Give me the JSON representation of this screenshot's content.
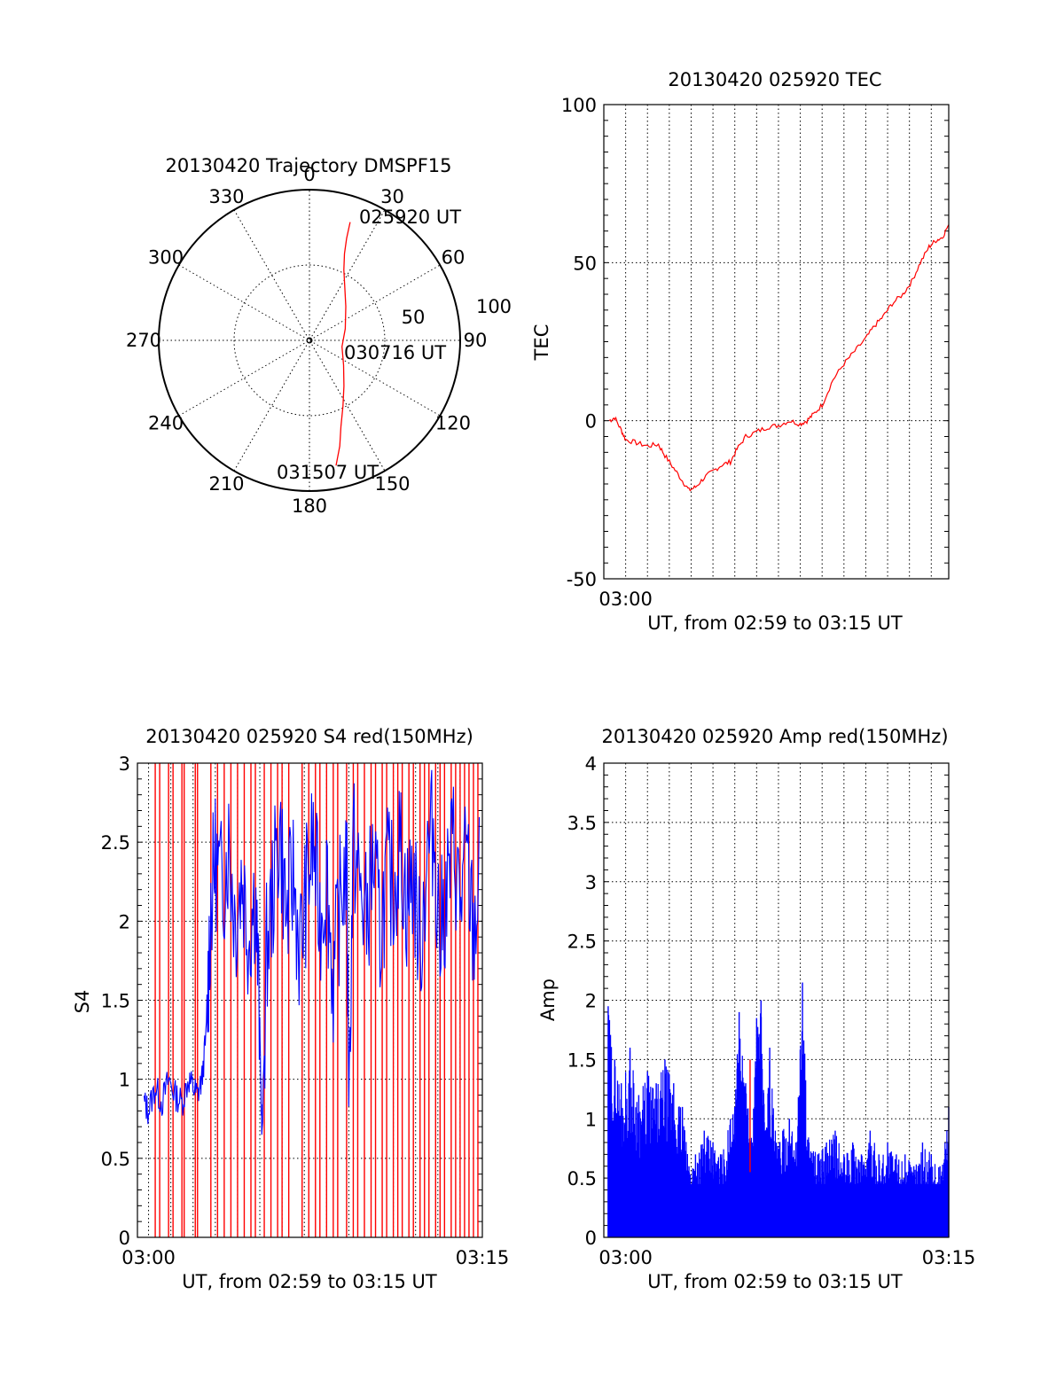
{
  "colors": {
    "red": "#ff0000",
    "blue": "#0000ff",
    "ink": "#000000"
  },
  "chart_data": [
    {
      "id": "trajectory",
      "type": "polar",
      "title": "20130420 Trajectory DMSPF15",
      "angle_labels": [
        "0",
        "30",
        "60",
        "90",
        "120",
        "150",
        "180",
        "210",
        "240",
        "270",
        "300",
        "330"
      ],
      "radial_labels": [
        "50",
        "100"
      ],
      "rmax": 100,
      "grid": true,
      "series": [
        {
          "color": "red",
          "points": [
            {
              "az": 19,
              "r": 83
            },
            {
              "az": 20,
              "r": 72
            },
            {
              "az": 22,
              "r": 62
            },
            {
              "az": 26,
              "r": 52
            },
            {
              "az": 34,
              "r": 42
            },
            {
              "az": 47,
              "r": 33
            },
            {
              "az": 72,
              "r": 25
            },
            {
              "az": 101,
              "r": 22
            },
            {
              "az": 126,
              "r": 28
            },
            {
              "az": 143,
              "r": 38
            },
            {
              "az": 153,
              "r": 49
            },
            {
              "az": 160,
              "r": 61
            },
            {
              "az": 164,
              "r": 73
            },
            {
              "az": 168,
              "r": 85
            }
          ]
        }
      ],
      "annotations": [
        {
          "text": "025920 UT",
          "az": 19,
          "r": 83
        },
        {
          "text": "030716 UT",
          "az": 101,
          "r": 22
        },
        {
          "text": "031507 UT",
          "az": 168,
          "r": 85
        }
      ]
    },
    {
      "id": "tec",
      "type": "line",
      "title": "20130420 025920 TEC",
      "xlabel": "UT, from 02:59 to 03:15 UT",
      "ylabel": "TEC",
      "xlim_minutes_from_start": [
        0,
        15.8
      ],
      "x_tick_labels": [
        {
          "label": "03:00",
          "at_minute": 1
        }
      ],
      "ylim": [
        -50,
        100
      ],
      "y_ticks": [
        -50,
        0,
        50,
        100
      ],
      "grid": true,
      "series": [
        {
          "color": "red",
          "points": [
            [
              0.25,
              0
            ],
            [
              0.5,
              1
            ],
            [
              0.8,
              -3
            ],
            [
              1.0,
              -6
            ],
            [
              1.5,
              -7
            ],
            [
              2.0,
              -8
            ],
            [
              2.5,
              -7.5
            ],
            [
              2.8,
              -11
            ],
            [
              3.2,
              -15
            ],
            [
              3.6,
              -19
            ],
            [
              3.9,
              -22
            ],
            [
              4.2,
              -21
            ],
            [
              4.6,
              -18
            ],
            [
              5.0,
              -16
            ],
            [
              5.4,
              -14
            ],
            [
              5.8,
              -13
            ],
            [
              6.1,
              -9
            ],
            [
              6.5,
              -5
            ],
            [
              7.0,
              -3.5
            ],
            [
              7.5,
              -2
            ],
            [
              8.0,
              -1.5
            ],
            [
              8.5,
              0
            ],
            [
              9.0,
              -1
            ],
            [
              9.3,
              0
            ],
            [
              9.6,
              2
            ],
            [
              10.0,
              5
            ],
            [
              10.5,
              13
            ],
            [
              11.0,
              18
            ],
            [
              11.5,
              22
            ],
            [
              12.0,
              26
            ],
            [
              12.4,
              30
            ],
            [
              12.8,
              33
            ],
            [
              13.2,
              37
            ],
            [
              13.7,
              40
            ],
            [
              14.1,
              44
            ],
            [
              14.5,
              50
            ],
            [
              14.9,
              55
            ],
            [
              15.2,
              57
            ],
            [
              15.5,
              58
            ],
            [
              15.8,
              62
            ]
          ]
        }
      ]
    },
    {
      "id": "s4",
      "type": "line",
      "title": "20130420 025920 S4 red(150MHz)",
      "xlabel": "UT, from 02:59 to 03:15 UT",
      "ylabel": "S4",
      "xlim_minutes_from_start": [
        0.5,
        16
      ],
      "x_tick_labels": [
        {
          "label": "03:00",
          "at_minute": 1
        },
        {
          "label": "03:15",
          "at_minute": 16
        }
      ],
      "ylim": [
        0,
        3
      ],
      "y_ticks": [
        "0",
        "0.5",
        "1",
        "1.5",
        "2",
        "2.5",
        "3"
      ],
      "grid": true,
      "series": [
        {
          "color": "red",
          "style": "vertical spikes 0 to 3",
          "spike_minutes": [
            1.3,
            1.5,
            1.9,
            2.1,
            2.5,
            2.6,
            3.1,
            3.2,
            3.8,
            4.1,
            4.4,
            4.7,
            5.0,
            5.3,
            5.6,
            5.8,
            6.2,
            6.5,
            6.8,
            7.0,
            7.3,
            7.9,
            8.2,
            8.5,
            8.7,
            9.0,
            9.3,
            9.5,
            9.9,
            10.2,
            10.4,
            10.7,
            11.0,
            11.2,
            11.5,
            11.7,
            12.0,
            12.2,
            12.4,
            12.7,
            12.9,
            13.2,
            13.4,
            13.6,
            13.9,
            14.1,
            14.3,
            14.6,
            14.8,
            15.0,
            15.2,
            15.4,
            15.6,
            15.8
          ]
        },
        {
          "color": "blue",
          "points": [
            [
              0.8,
              0.85
            ],
            [
              1.0,
              0.8
            ],
            [
              1.3,
              0.95
            ],
            [
              1.6,
              0.85
            ],
            [
              1.9,
              1.0
            ],
            [
              2.2,
              0.9
            ],
            [
              2.5,
              0.85
            ],
            [
              2.8,
              1.0
            ],
            [
              3.0,
              0.95
            ],
            [
              3.2,
              0.9
            ],
            [
              3.4,
              1.0
            ],
            [
              3.6,
              1.3
            ],
            [
              3.8,
              2.1
            ],
            [
              4.0,
              2.4
            ],
            [
              4.3,
              2.2
            ],
            [
              4.6,
              2.5
            ],
            [
              4.9,
              2.0
            ],
            [
              5.2,
              2.3
            ],
            [
              5.5,
              1.9
            ],
            [
              5.8,
              2.2
            ],
            [
              6.0,
              1.3
            ],
            [
              6.1,
              0.6
            ],
            [
              6.3,
              1.8
            ],
            [
              6.6,
              2.2
            ],
            [
              6.9,
              2.6
            ],
            [
              7.2,
              2.0
            ],
            [
              7.5,
              2.3
            ],
            [
              7.8,
              1.8
            ],
            [
              8.1,
              2.2
            ],
            [
              8.4,
              2.5
            ],
            [
              8.7,
              2.0
            ],
            [
              9.0,
              2.3
            ],
            [
              9.3,
              1.6
            ],
            [
              9.6,
              2.1
            ],
            [
              9.9,
              2.4
            ],
            [
              10.0,
              0.9
            ],
            [
              10.2,
              2.5
            ],
            [
              10.5,
              2.2
            ],
            [
              10.8,
              2.0
            ],
            [
              11.1,
              2.4
            ],
            [
              11.4,
              1.9
            ],
            [
              11.7,
              2.3
            ],
            [
              12.0,
              2.2
            ],
            [
              12.3,
              2.5
            ],
            [
              12.6,
              2.1
            ],
            [
              12.9,
              2.3
            ],
            [
              13.2,
              1.8
            ],
            [
              13.5,
              2.4
            ],
            [
              13.8,
              2.6
            ],
            [
              14.1,
              1.9
            ],
            [
              14.4,
              2.2
            ],
            [
              14.7,
              2.5
            ],
            [
              15.0,
              2.1
            ],
            [
              15.3,
              2.4
            ],
            [
              15.6,
              1.9
            ],
            [
              15.9,
              2.3
            ]
          ]
        }
      ]
    },
    {
      "id": "amp",
      "type": "line",
      "title": "20130420 025920 Amp red(150MHz)",
      "xlabel": "UT, from 02:59 to 03:15 UT",
      "ylabel": "Amp",
      "xlim_minutes_from_start": [
        0,
        15.8
      ],
      "x_tick_labels": [
        {
          "label": "03:00",
          "at_minute": 1
        },
        {
          "label": "03:15",
          "at_minute": 15.8
        }
      ],
      "ylim": [
        0,
        4
      ],
      "y_ticks": [
        "0",
        "0.5",
        "1",
        "1.5",
        "2",
        "2.5",
        "3",
        "3.5",
        "4"
      ],
      "grid": true,
      "series": [
        {
          "color": "blue",
          "style": "dense spikes from 0",
          "points": [
            [
              0.2,
              1.95
            ],
            [
              0.5,
              1.5
            ],
            [
              0.8,
              1.3
            ],
            [
              1.2,
              1.6
            ],
            [
              1.6,
              1.2
            ],
            [
              2.0,
              1.4
            ],
            [
              2.4,
              1.3
            ],
            [
              2.8,
              1.5
            ],
            [
              3.2,
              1.3
            ],
            [
              3.6,
              1.1
            ],
            [
              3.9,
              0.6
            ],
            [
              4.2,
              0.7
            ],
            [
              4.6,
              0.9
            ],
            [
              5.0,
              0.8
            ],
            [
              5.4,
              0.7
            ],
            [
              5.8,
              1.0
            ],
            [
              6.0,
              1.1
            ],
            [
              6.2,
              1.9
            ],
            [
              6.5,
              1.3
            ],
            [
              6.8,
              0.8
            ],
            [
              7.0,
              1.85
            ],
            [
              7.2,
              2.0
            ],
            [
              7.4,
              0.9
            ],
            [
              7.6,
              1.6
            ],
            [
              7.9,
              0.8
            ],
            [
              8.2,
              0.9
            ],
            [
              8.5,
              1.0
            ],
            [
              8.8,
              0.8
            ],
            [
              9.1,
              2.15
            ],
            [
              9.4,
              0.8
            ],
            [
              9.8,
              0.7
            ],
            [
              10.2,
              0.8
            ],
            [
              10.6,
              0.9
            ],
            [
              11.0,
              0.7
            ],
            [
              11.4,
              0.8
            ],
            [
              11.8,
              0.7
            ],
            [
              12.2,
              0.9
            ],
            [
              12.6,
              0.7
            ],
            [
              13.0,
              0.8
            ],
            [
              13.4,
              0.7
            ],
            [
              13.8,
              0.7
            ],
            [
              14.2,
              0.6
            ],
            [
              14.6,
              0.8
            ],
            [
              15.0,
              0.7
            ],
            [
              15.4,
              0.6
            ],
            [
              15.8,
              1.1
            ]
          ]
        },
        {
          "color": "red",
          "points": [
            [
              6.7,
              0.55
            ],
            [
              6.7,
              1.5
            ]
          ]
        }
      ]
    }
  ]
}
